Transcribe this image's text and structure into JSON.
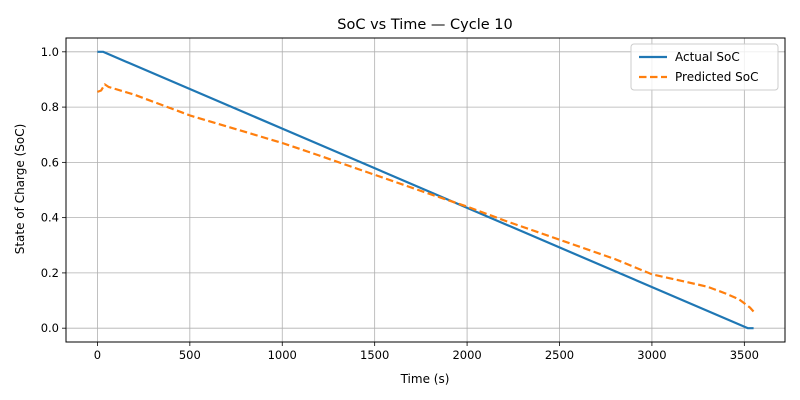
{
  "chart_data": {
    "type": "line",
    "title": "SoC vs Time — Cycle 10",
    "xlabel": "Time (s)",
    "ylabel": "State of Charge (SoC)",
    "xlim": [
      -170,
      3720
    ],
    "ylim": [
      -0.05,
      1.05
    ],
    "xticks": [
      0,
      500,
      1000,
      1500,
      2000,
      2500,
      3000,
      3500
    ],
    "xtick_labels": [
      "0",
      "500",
      "1000",
      "1500",
      "2000",
      "2500",
      "3000",
      "3500"
    ],
    "yticks": [
      0.0,
      0.2,
      0.4,
      0.6,
      0.8,
      1.0
    ],
    "ytick_labels": [
      "0.0",
      "0.2",
      "0.4",
      "0.6",
      "0.8",
      "1.0"
    ],
    "grid": true,
    "legend_position": "top-right",
    "series": [
      {
        "name": "Actual SoC",
        "color": "#1f77b4",
        "dash": "solid",
        "x": [
          0,
          30,
          3520,
          3550
        ],
        "y": [
          1.0,
          1.0,
          0.0,
          0.0
        ]
      },
      {
        "name": "Predicted SoC",
        "color": "#ff7f0e",
        "dash": "dashed",
        "x": [
          0,
          20,
          40,
          60,
          200,
          500,
          1000,
          1200,
          1500,
          1800,
          2000,
          2200,
          2500,
          2800,
          3000,
          3100,
          3300,
          3400,
          3470,
          3500,
          3530,
          3550
        ],
        "y": [
          0.855,
          0.86,
          0.882,
          0.873,
          0.845,
          0.77,
          0.67,
          0.625,
          0.555,
          0.485,
          0.44,
          0.39,
          0.32,
          0.25,
          0.195,
          0.18,
          0.15,
          0.125,
          0.105,
          0.09,
          0.075,
          0.06
        ]
      }
    ]
  }
}
